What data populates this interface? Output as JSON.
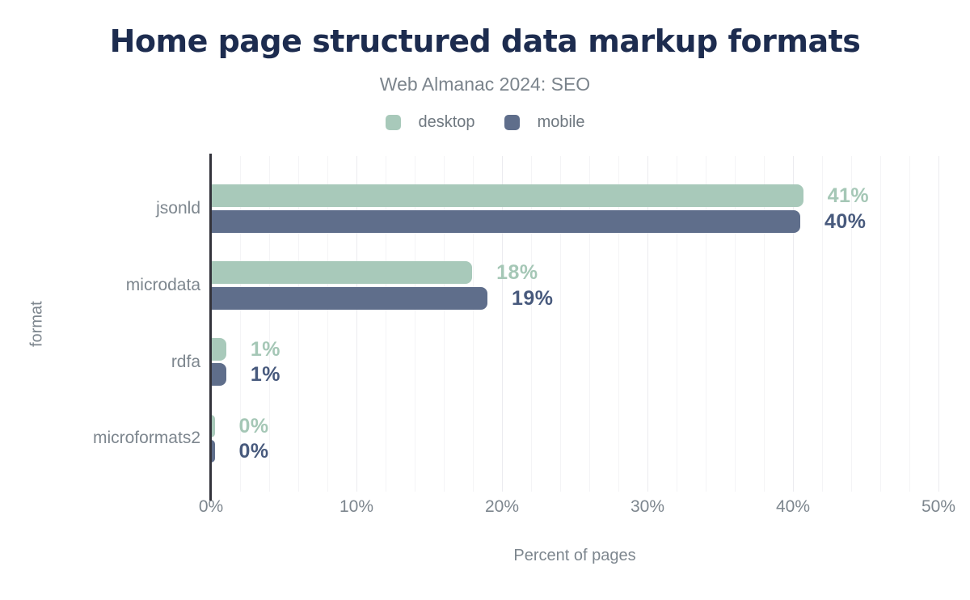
{
  "header": {
    "title": "Home page structured data markup formats",
    "subtitle": "Web Almanac 2024: SEO"
  },
  "legend": {
    "items": [
      {
        "label": "desktop",
        "color": "#a8c9ba"
      },
      {
        "label": "mobile",
        "color": "#5f6e8b"
      }
    ]
  },
  "colors": {
    "title_text": "#1d2c4f",
    "subtitle_text": "#7b848c",
    "legend_text": "#6f7880",
    "axis_text": "#7d868e",
    "axis_line": "#33333b",
    "grid_minor": "#f4f4f6",
    "grid_major": "#ebebef",
    "desktop_bar": "#a8c9ba",
    "mobile_bar": "#5f6e8b",
    "desktop_value_label": "#a5c7b6",
    "mobile_value_label": "#485a7d"
  },
  "chart_data": {
    "type": "bar",
    "orientation": "horizontal",
    "title": "Home page structured data markup formats",
    "subtitle": "Web Almanac 2024: SEO",
    "categories": [
      "jsonld",
      "microdata",
      "rdfa",
      "microformats2"
    ],
    "series": [
      {
        "name": "desktop",
        "values": [
          41,
          18,
          1,
          0
        ],
        "value_labels": [
          "41%",
          "18%",
          "1%",
          "0%"
        ],
        "bar_length_pct": [
          40.7,
          17.95,
          1.05,
          0.25
        ]
      },
      {
        "name": "mobile",
        "values": [
          40,
          19,
          1,
          0
        ],
        "value_labels": [
          "40%",
          "19%",
          "1%",
          "0%"
        ],
        "bar_length_pct": [
          40.5,
          19.0,
          1.05,
          0.25
        ]
      }
    ],
    "xlabel": "Percent of pages",
    "ylabel": "format",
    "xlim": [
      0,
      50
    ],
    "x_tick_values": [
      0,
      10,
      20,
      30,
      40,
      50
    ],
    "x_tick_labels": [
      "0%",
      "10%",
      "20%",
      "30%",
      "40%",
      "50%"
    ],
    "grid": {
      "visible": true,
      "minor_step": 2,
      "major_step": 10
    },
    "legend_position": "top"
  }
}
